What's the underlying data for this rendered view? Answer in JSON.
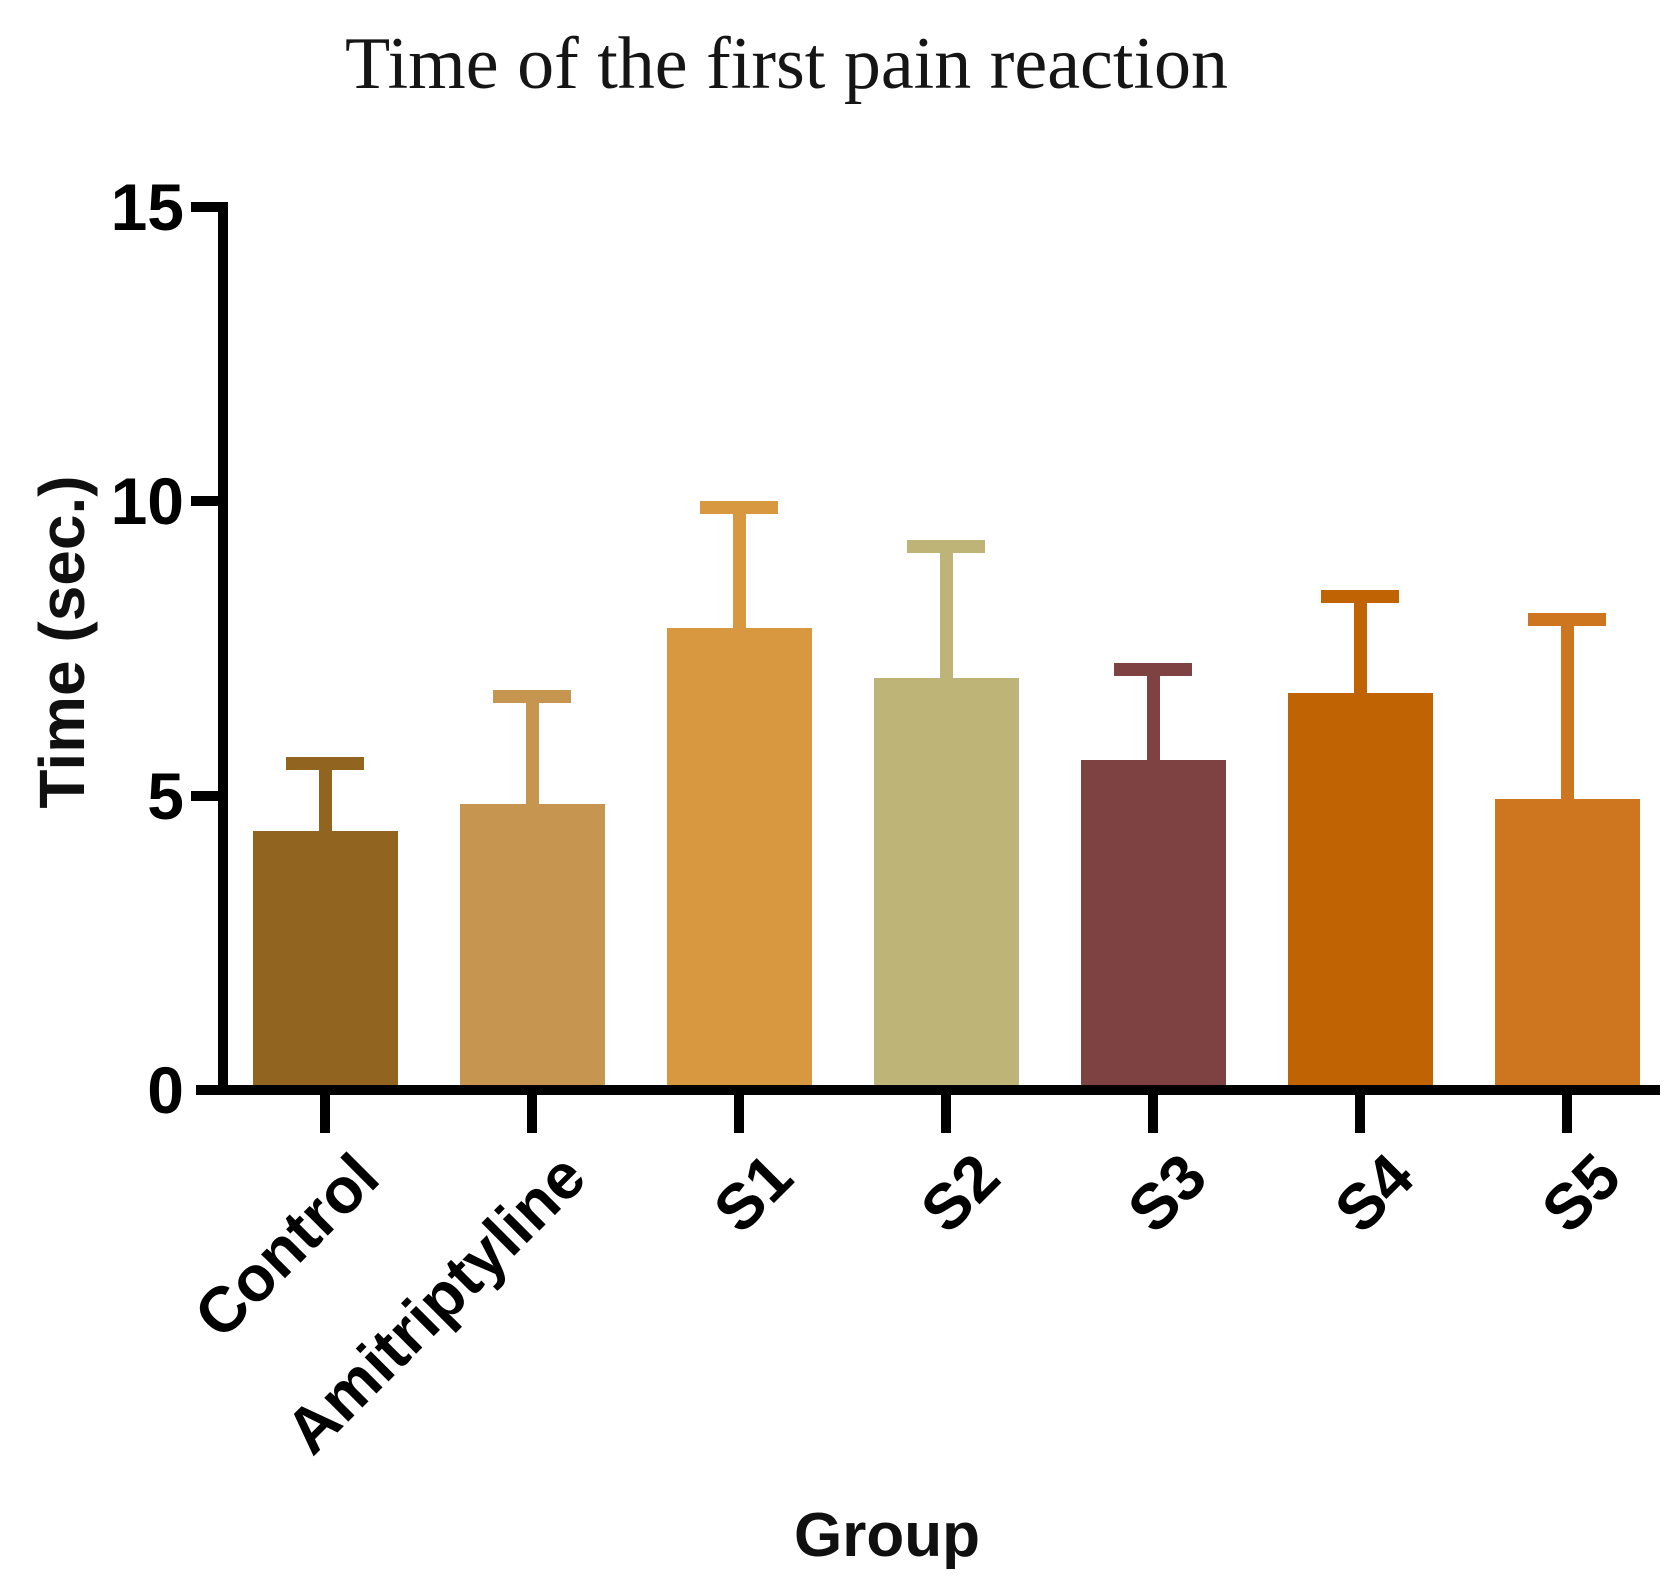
{
  "title": "Time of the first pain reaction",
  "y_axis": {
    "label": "Time (sec.)",
    "tick_values": [
      0,
      5,
      10,
      15
    ]
  },
  "x_axis": {
    "label": "Group"
  },
  "chart_data": {
    "type": "bar",
    "title": "Time of the first pain reaction",
    "xlabel": "Group",
    "ylabel": "Time (sec.)",
    "ylim": [
      0,
      15
    ],
    "yticks": [
      0,
      5,
      10,
      15
    ],
    "grid": false,
    "legend": null,
    "error_bars": "upper SD whisker with cap, same color as bar",
    "categories": [
      "Control",
      "Amitriptyline",
      "S1",
      "S2",
      "S3",
      "S4",
      "S5"
    ],
    "values": [
      4.4,
      4.85,
      7.85,
      7.0,
      5.6,
      6.75,
      4.95
    ],
    "error_plus": [
      1.25,
      1.95,
      2.15,
      2.35,
      1.65,
      1.75,
      3.15
    ],
    "bar_colors": [
      "#916420",
      "#c6954f",
      "#d89840",
      "#bfb478",
      "#7f4242",
      "#c06303",
      "#ce761f"
    ]
  }
}
